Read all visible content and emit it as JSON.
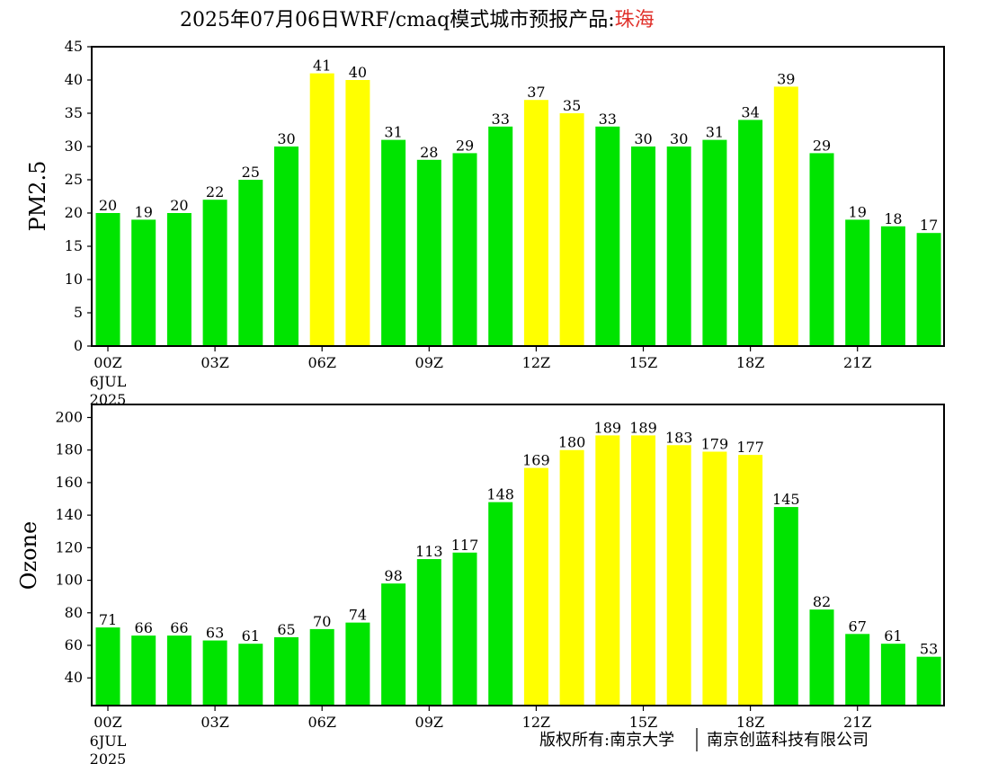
{
  "header": {
    "title_prefix": "2025年07月06日WRF/cmaq模式城市预报产品:",
    "city": "珠海"
  },
  "footer": {
    "copyright_left": "版权所有:南京大学",
    "copyright_right": "南京创蓝科技有限公司"
  },
  "colors": {
    "good": "#00e400",
    "moderate": "#ffff00",
    "axis": "#000000",
    "city_text": "#e0302a"
  },
  "chart_data": [
    {
      "type": "bar",
      "ylabel": "PM2.5",
      "ylim": [
        0,
        45
      ],
      "yticks": [
        0,
        5,
        10,
        15,
        20,
        25,
        30,
        35,
        40,
        45
      ],
      "x_tick_labels": [
        "00Z",
        "03Z",
        "06Z",
        "09Z",
        "12Z",
        "15Z",
        "18Z",
        "21Z"
      ],
      "x_tick_indices": [
        0,
        3,
        6,
        9,
        12,
        15,
        18,
        21
      ],
      "date_label": [
        "6JUL",
        "2025"
      ],
      "values": [
        20,
        19,
        20,
        22,
        25,
        30,
        41,
        40,
        31,
        28,
        29,
        33,
        37,
        35,
        33,
        30,
        30,
        31,
        34,
        39,
        29,
        19,
        18,
        17
      ],
      "color_keys": [
        "good",
        "good",
        "good",
        "good",
        "good",
        "good",
        "moderate",
        "moderate",
        "good",
        "good",
        "good",
        "good",
        "moderate",
        "moderate",
        "good",
        "good",
        "good",
        "good",
        "good",
        "moderate",
        "good",
        "good",
        "good",
        "good"
      ]
    },
    {
      "type": "bar",
      "ylabel": "Ozone",
      "ylim": [
        23,
        208
      ],
      "yticks": [
        40,
        60,
        80,
        100,
        120,
        140,
        160,
        180,
        200
      ],
      "x_tick_labels": [
        "00Z",
        "03Z",
        "06Z",
        "09Z",
        "12Z",
        "15Z",
        "18Z",
        "21Z"
      ],
      "x_tick_indices": [
        0,
        3,
        6,
        9,
        12,
        15,
        18,
        21
      ],
      "date_label": [
        "6JUL",
        "2025"
      ],
      "values": [
        71,
        66,
        66,
        63,
        61,
        65,
        70,
        74,
        98,
        113,
        117,
        148,
        169,
        180,
        189,
        189,
        183,
        179,
        177,
        145,
        82,
        67,
        61,
        53
      ],
      "color_keys": [
        "good",
        "good",
        "good",
        "good",
        "good",
        "good",
        "good",
        "good",
        "good",
        "good",
        "good",
        "good",
        "moderate",
        "moderate",
        "moderate",
        "moderate",
        "moderate",
        "moderate",
        "moderate",
        "good",
        "good",
        "good",
        "good",
        "good"
      ]
    }
  ]
}
